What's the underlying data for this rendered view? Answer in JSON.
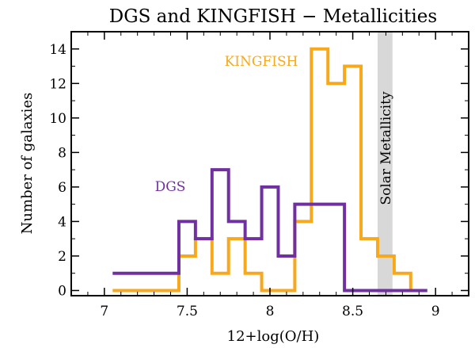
{
  "chart_data": {
    "type": "histogram",
    "title": "DGS and KINGFISH − Metallicities",
    "xlabel": "12+log(O/H)",
    "ylabel": "Number of galaxies",
    "xlim": [
      6.8,
      9.2
    ],
    "ylim": [
      -0.3,
      15
    ],
    "xticks": [
      "7",
      "7.5",
      "8",
      "8.5",
      "9"
    ],
    "yticks": [
      "0",
      "2",
      "4",
      "6",
      "8",
      "10",
      "12",
      "14"
    ],
    "bin_width": 0.1,
    "series": [
      {
        "name": "KINGFISH",
        "color": "#F8A81B",
        "bins_start": [
          7.05,
          7.15,
          7.25,
          7.35,
          7.45,
          7.55,
          7.65,
          7.75,
          7.85,
          7.95,
          8.05,
          8.15,
          8.25,
          8.35,
          8.45,
          8.55,
          8.65,
          8.75,
          8.85
        ],
        "counts": [
          0,
          0,
          0,
          0,
          2,
          3,
          1,
          3,
          1,
          0,
          0,
          4,
          14,
          12,
          13,
          3,
          2,
          1,
          0
        ]
      },
      {
        "name": "DGS",
        "color": "#7030A0",
        "bins_start": [
          7.05,
          7.15,
          7.25,
          7.35,
          7.45,
          7.55,
          7.65,
          7.75,
          7.85,
          7.95,
          8.05,
          8.15,
          8.25,
          8.35,
          8.45,
          8.55,
          8.65,
          8.75,
          8.85
        ],
        "counts": [
          1,
          1,
          1,
          1,
          4,
          3,
          7,
          4,
          3,
          6,
          2,
          5,
          5,
          5,
          0,
          0,
          0,
          0,
          0
        ]
      }
    ],
    "annotations": [
      {
        "text": "KINGFISH",
        "color": "#F8A81B"
      },
      {
        "text": "DGS",
        "color": "#7030A0"
      },
      {
        "text": "Solar Metallicity",
        "band": [
          8.65,
          8.74
        ],
        "color": "#D8D8D8"
      }
    ]
  }
}
